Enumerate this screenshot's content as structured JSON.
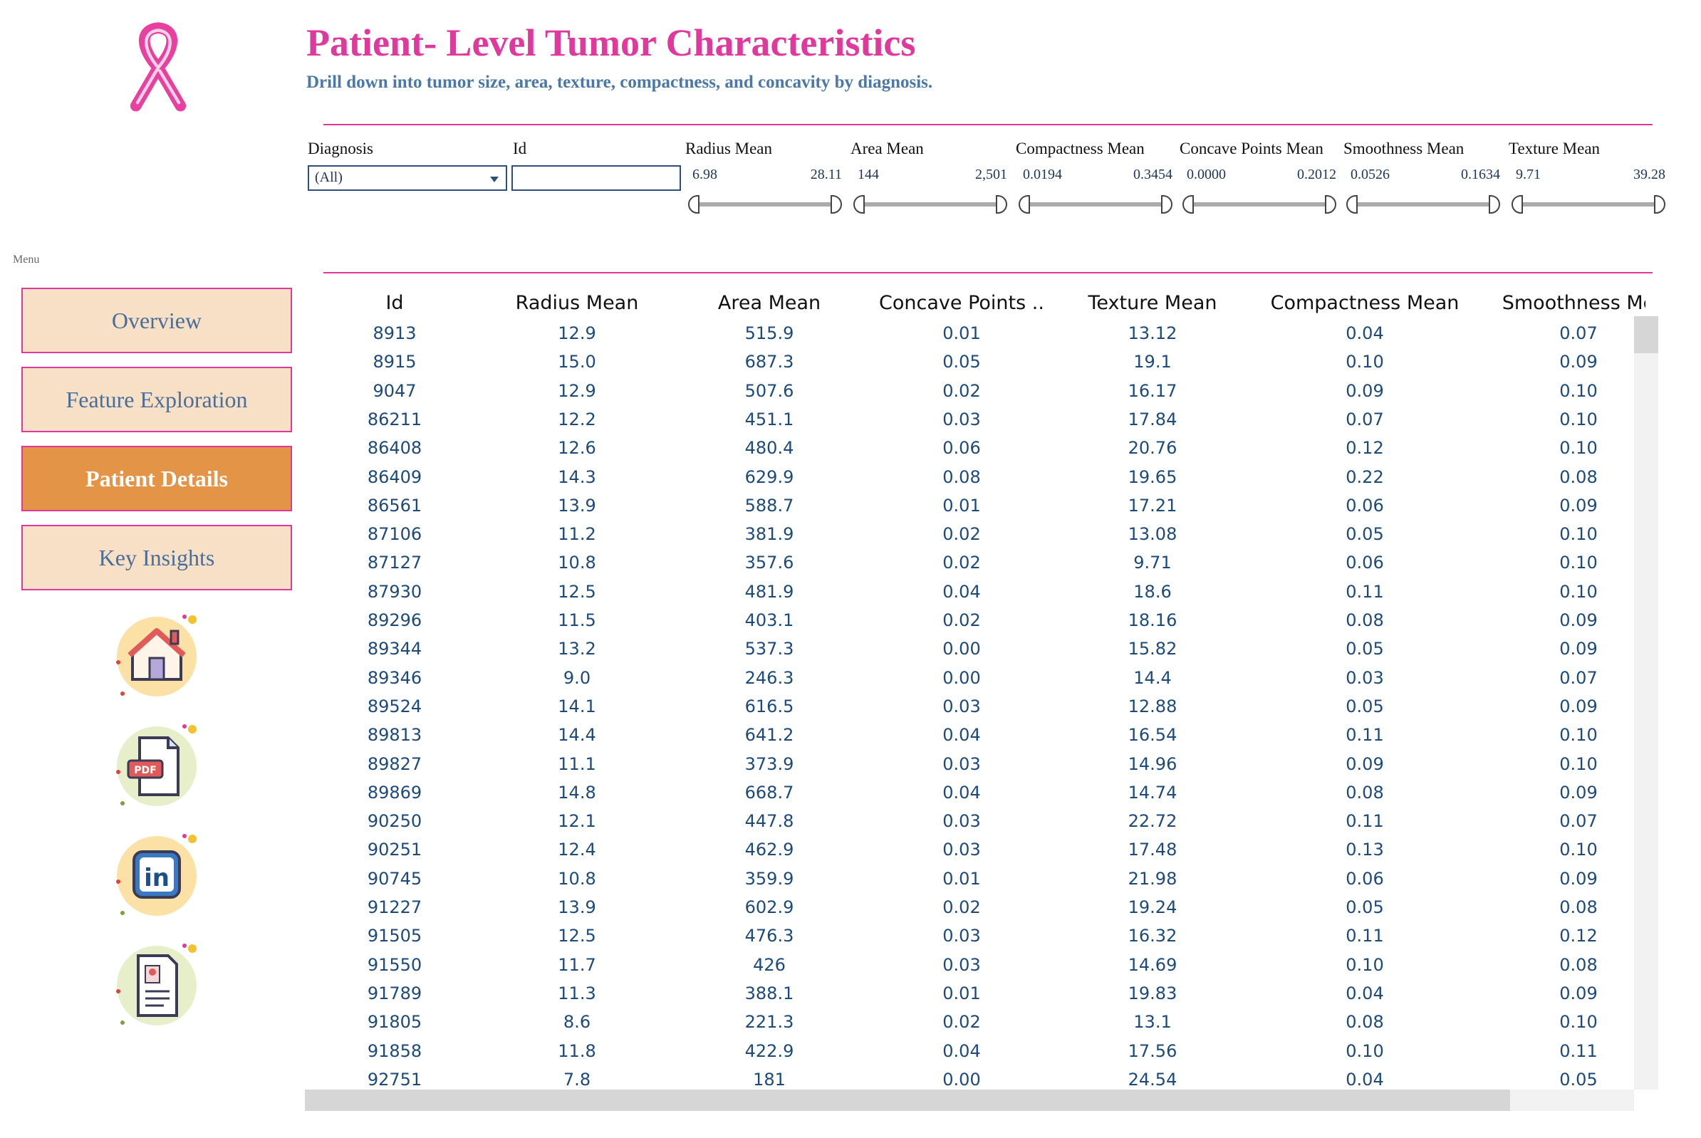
{
  "header": {
    "title": "Patient- Level Tumor Characteristics",
    "subtitle": "Drill down into tumor size, area, texture, compactness, and concavity by diagnosis."
  },
  "colors": {
    "accent": "#e0399e",
    "subtitle": "#4a78a8",
    "nav_bg": "#f8e0c6",
    "nav_active": "#e49446",
    "value_text": "#1d4a7a"
  },
  "filters": {
    "diagnosis": {
      "label": "Diagnosis",
      "value": "(All)"
    },
    "id": {
      "label": "Id",
      "value": ""
    },
    "sliders": [
      {
        "label": "Radius Mean",
        "min": "6.98",
        "max": "28.11"
      },
      {
        "label": "Area Mean",
        "min": "144",
        "max": "2,501"
      },
      {
        "label": "Compactness Mean",
        "min": "0.0194",
        "max": "0.3454"
      },
      {
        "label": "Concave Points Mean",
        "min": "0.0000",
        "max": "0.2012"
      },
      {
        "label": "Smoothness Mean",
        "min": "0.0526",
        "max": "0.1634"
      },
      {
        "label": "Texture Mean",
        "min": "9.71",
        "max": "39.28"
      }
    ]
  },
  "menu": {
    "label": "Menu",
    "items": [
      {
        "label": "Overview",
        "active": false
      },
      {
        "label": "Feature Exploration",
        "active": false
      },
      {
        "label": "Patient Details",
        "active": true
      },
      {
        "label": "Key Insights",
        "active": false
      }
    ],
    "icons": [
      "home-icon",
      "pdf-icon",
      "linkedin-icon",
      "resume-icon"
    ]
  },
  "table": {
    "columns": [
      "Id",
      "Radius Mean",
      "Area Mean",
      "Concave Points ..",
      "Texture Mean",
      "Compactness Mean",
      "Smoothness Me"
    ],
    "rows": [
      [
        "8913",
        "12.9",
        "515.9",
        "0.01",
        "13.12",
        "0.04",
        "0.07"
      ],
      [
        "8915",
        "15.0",
        "687.3",
        "0.05",
        "19.1",
        "0.10",
        "0.09"
      ],
      [
        "9047",
        "12.9",
        "507.6",
        "0.02",
        "16.17",
        "0.09",
        "0.10"
      ],
      [
        "86211",
        "12.2",
        "451.1",
        "0.03",
        "17.84",
        "0.07",
        "0.10"
      ],
      [
        "86408",
        "12.6",
        "480.4",
        "0.06",
        "20.76",
        "0.12",
        "0.10"
      ],
      [
        "86409",
        "14.3",
        "629.9",
        "0.08",
        "19.65",
        "0.22",
        "0.08"
      ],
      [
        "86561",
        "13.9",
        "588.7",
        "0.01",
        "17.21",
        "0.06",
        "0.09"
      ],
      [
        "87106",
        "11.2",
        "381.9",
        "0.02",
        "13.08",
        "0.05",
        "0.10"
      ],
      [
        "87127",
        "10.8",
        "357.6",
        "0.02",
        "9.71",
        "0.06",
        "0.10"
      ],
      [
        "87930",
        "12.5",
        "481.9",
        "0.04",
        "18.6",
        "0.11",
        "0.10"
      ],
      [
        "89296",
        "11.5",
        "403.1",
        "0.02",
        "18.16",
        "0.08",
        "0.09"
      ],
      [
        "89344",
        "13.2",
        "537.3",
        "0.00",
        "15.82",
        "0.05",
        "0.09"
      ],
      [
        "89346",
        "9.0",
        "246.3",
        "0.00",
        "14.4",
        "0.03",
        "0.07"
      ],
      [
        "89524",
        "14.1",
        "616.5",
        "0.03",
        "12.88",
        "0.05",
        "0.09"
      ],
      [
        "89813",
        "14.4",
        "641.2",
        "0.04",
        "16.54",
        "0.11",
        "0.10"
      ],
      [
        "89827",
        "11.1",
        "373.9",
        "0.03",
        "14.96",
        "0.09",
        "0.10"
      ],
      [
        "89869",
        "14.8",
        "668.7",
        "0.04",
        "14.74",
        "0.08",
        "0.09"
      ],
      [
        "90250",
        "12.1",
        "447.8",
        "0.03",
        "22.72",
        "0.11",
        "0.07"
      ],
      [
        "90251",
        "12.4",
        "462.9",
        "0.03",
        "17.48",
        "0.13",
        "0.10"
      ],
      [
        "90745",
        "10.8",
        "359.9",
        "0.01",
        "21.98",
        "0.06",
        "0.09"
      ],
      [
        "91227",
        "13.9",
        "602.9",
        "0.02",
        "19.24",
        "0.05",
        "0.08"
      ],
      [
        "91505",
        "12.5",
        "476.3",
        "0.03",
        "16.32",
        "0.11",
        "0.12"
      ],
      [
        "91550",
        "11.7",
        "426",
        "0.03",
        "14.69",
        "0.10",
        "0.08"
      ],
      [
        "91789",
        "11.3",
        "388.1",
        "0.01",
        "19.83",
        "0.04",
        "0.09"
      ],
      [
        "91805",
        "8.6",
        "221.3",
        "0.02",
        "13.1",
        "0.08",
        "0.10"
      ],
      [
        "91858",
        "11.8",
        "422.9",
        "0.04",
        "17.56",
        "0.10",
        "0.11"
      ],
      [
        "92751",
        "7.8",
        "181",
        "0.00",
        "24.54",
        "0.04",
        "0.05"
      ]
    ]
  }
}
